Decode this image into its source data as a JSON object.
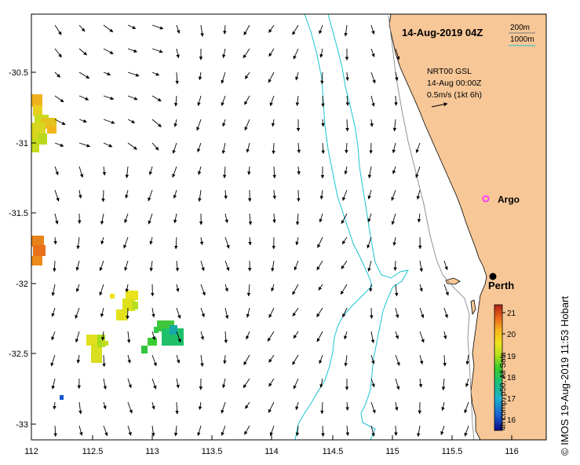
{
  "map": {
    "title": "14-Aug-2019 04Z",
    "scale": {
      "label_200m": "200m",
      "label_1000m": "1000m",
      "color_200m": "#7a7a7a",
      "color_1000m": "#19c4cf"
    },
    "current_info": {
      "line1": "NRT00 GSL",
      "line2": "14-Aug 00:00Z",
      "line3": "0.5m/s (1kt 6h)"
    },
    "x_ticks": [
      "112",
      "112.5",
      "113",
      "113.5",
      "114",
      "114.5",
      "115",
      "115.5",
      "116"
    ],
    "y_ticks": [
      "-30.5",
      "-31",
      "-31.5",
      "-32",
      "-32.5",
      "-33"
    ],
    "markers": {
      "argo": {
        "label": "Argo",
        "color": "#ff33ff"
      },
      "perth": {
        "label": "Perth"
      }
    },
    "colors": {
      "land": "#f7c797",
      "ocean": "#ffffff",
      "isobath": "#19c4cf"
    },
    "colorbar": {
      "ticks": [
        "21",
        "20",
        "19",
        "18",
        "17",
        "16"
      ],
      "label": "4h comp, p50, All Sats"
    },
    "credit": "© IMOS 19-Aug-2019 11:53 Hobart"
  }
}
